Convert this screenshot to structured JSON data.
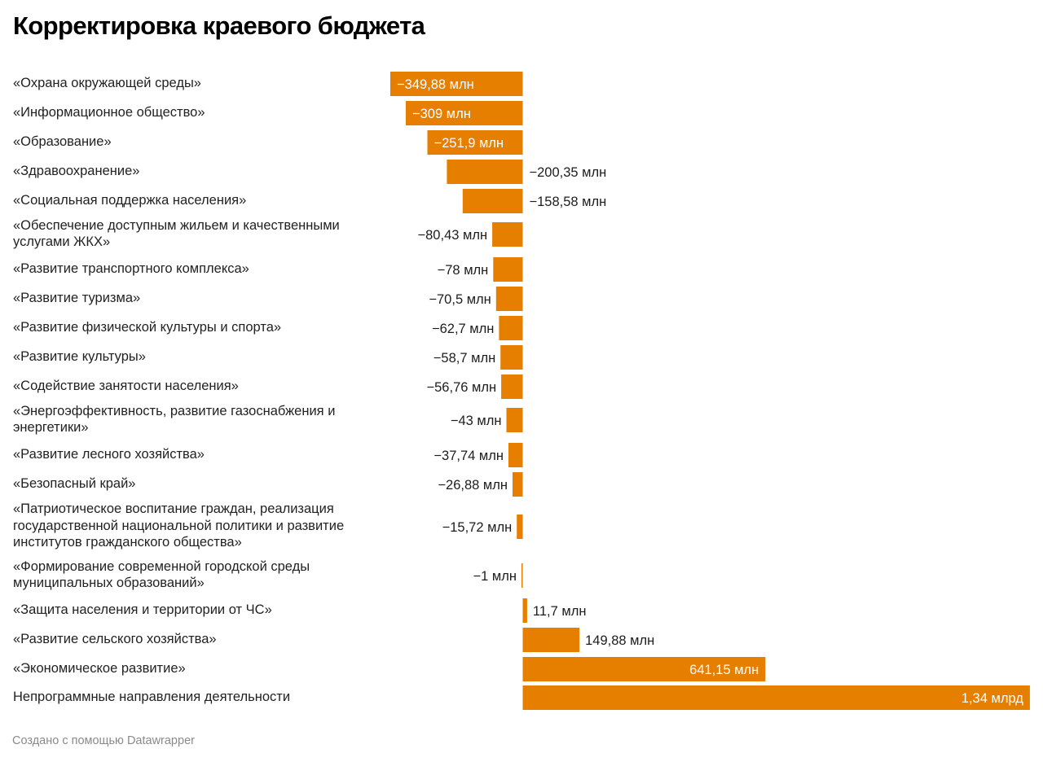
{
  "title": "Корректировка краевого бюджета",
  "footer": "Создано с помощью Datawrapper",
  "colors": {
    "bar": "#e67e00",
    "label_inside": "#ffffff",
    "label_outside": "#1d1d1d"
  },
  "chart_data": {
    "type": "bar",
    "orientation": "horizontal",
    "title": "Корректировка краевого бюджета",
    "xlabel": "",
    "ylabel": "",
    "unit": "млн руб.",
    "grid": false,
    "legend": "none",
    "xlim": [
      -349.88,
      1340
    ],
    "categories": [
      "«Охрана окружающей среды»",
      "«Информационное общество»",
      "«Образование»",
      "«Здравоохранение»",
      "«Социальная поддержка населения»",
      "«Обеспечение доступным жильем и качественными услугами ЖКХ»",
      "«Развитие транспортного комплекса»",
      "«Развитие туризма»",
      "«Развитие физической культуры и спорта»",
      "«Развитие культуры»",
      "«Содействие занятости населения»",
      "«Энергоэффективность, развитие газоснабжения и энергетики»",
      "«Развитие лесного хозяйства»",
      "«Безопасный край»",
      "«Патриотическое воспитание граждан, реализация государственной национальной политики и развитие институтов гражданского общества»",
      "«Формирование современной городской среды муниципальных образований»",
      "«Защита населения и территории от ЧС»",
      "«Развитие сельского хозяйства»",
      "«Экономическое развитие»",
      "Непрограммные направления деятельности"
    ],
    "values": [
      -349.88,
      -309,
      -251.9,
      -200.35,
      -158.58,
      -80.43,
      -78,
      -70.5,
      -62.7,
      -58.7,
      -56.76,
      -43,
      -37.74,
      -26.88,
      -15.72,
      -1,
      11.7,
      149.88,
      641.15,
      1340
    ],
    "value_labels": [
      "−349,88 млн",
      "−309 млн",
      "−251,9 млн",
      "−200,35 млн",
      "−158,58 млн",
      "−80,43 млн",
      "−78 млн",
      "−70,5 млн",
      "−62,7 млн",
      "−58,7 млн",
      "−56,76 млн",
      "−43 млн",
      "−37,74 млн",
      "−26,88 млн",
      "−15,72 млн",
      "−1 млн",
      "11,7 млн",
      "149,88 млн",
      "641,15 млн",
      "1,34 млрд"
    ],
    "label_inside": [
      true,
      true,
      true,
      false,
      false,
      false,
      false,
      false,
      false,
      false,
      false,
      false,
      false,
      false,
      false,
      false,
      false,
      false,
      true,
      true
    ]
  }
}
